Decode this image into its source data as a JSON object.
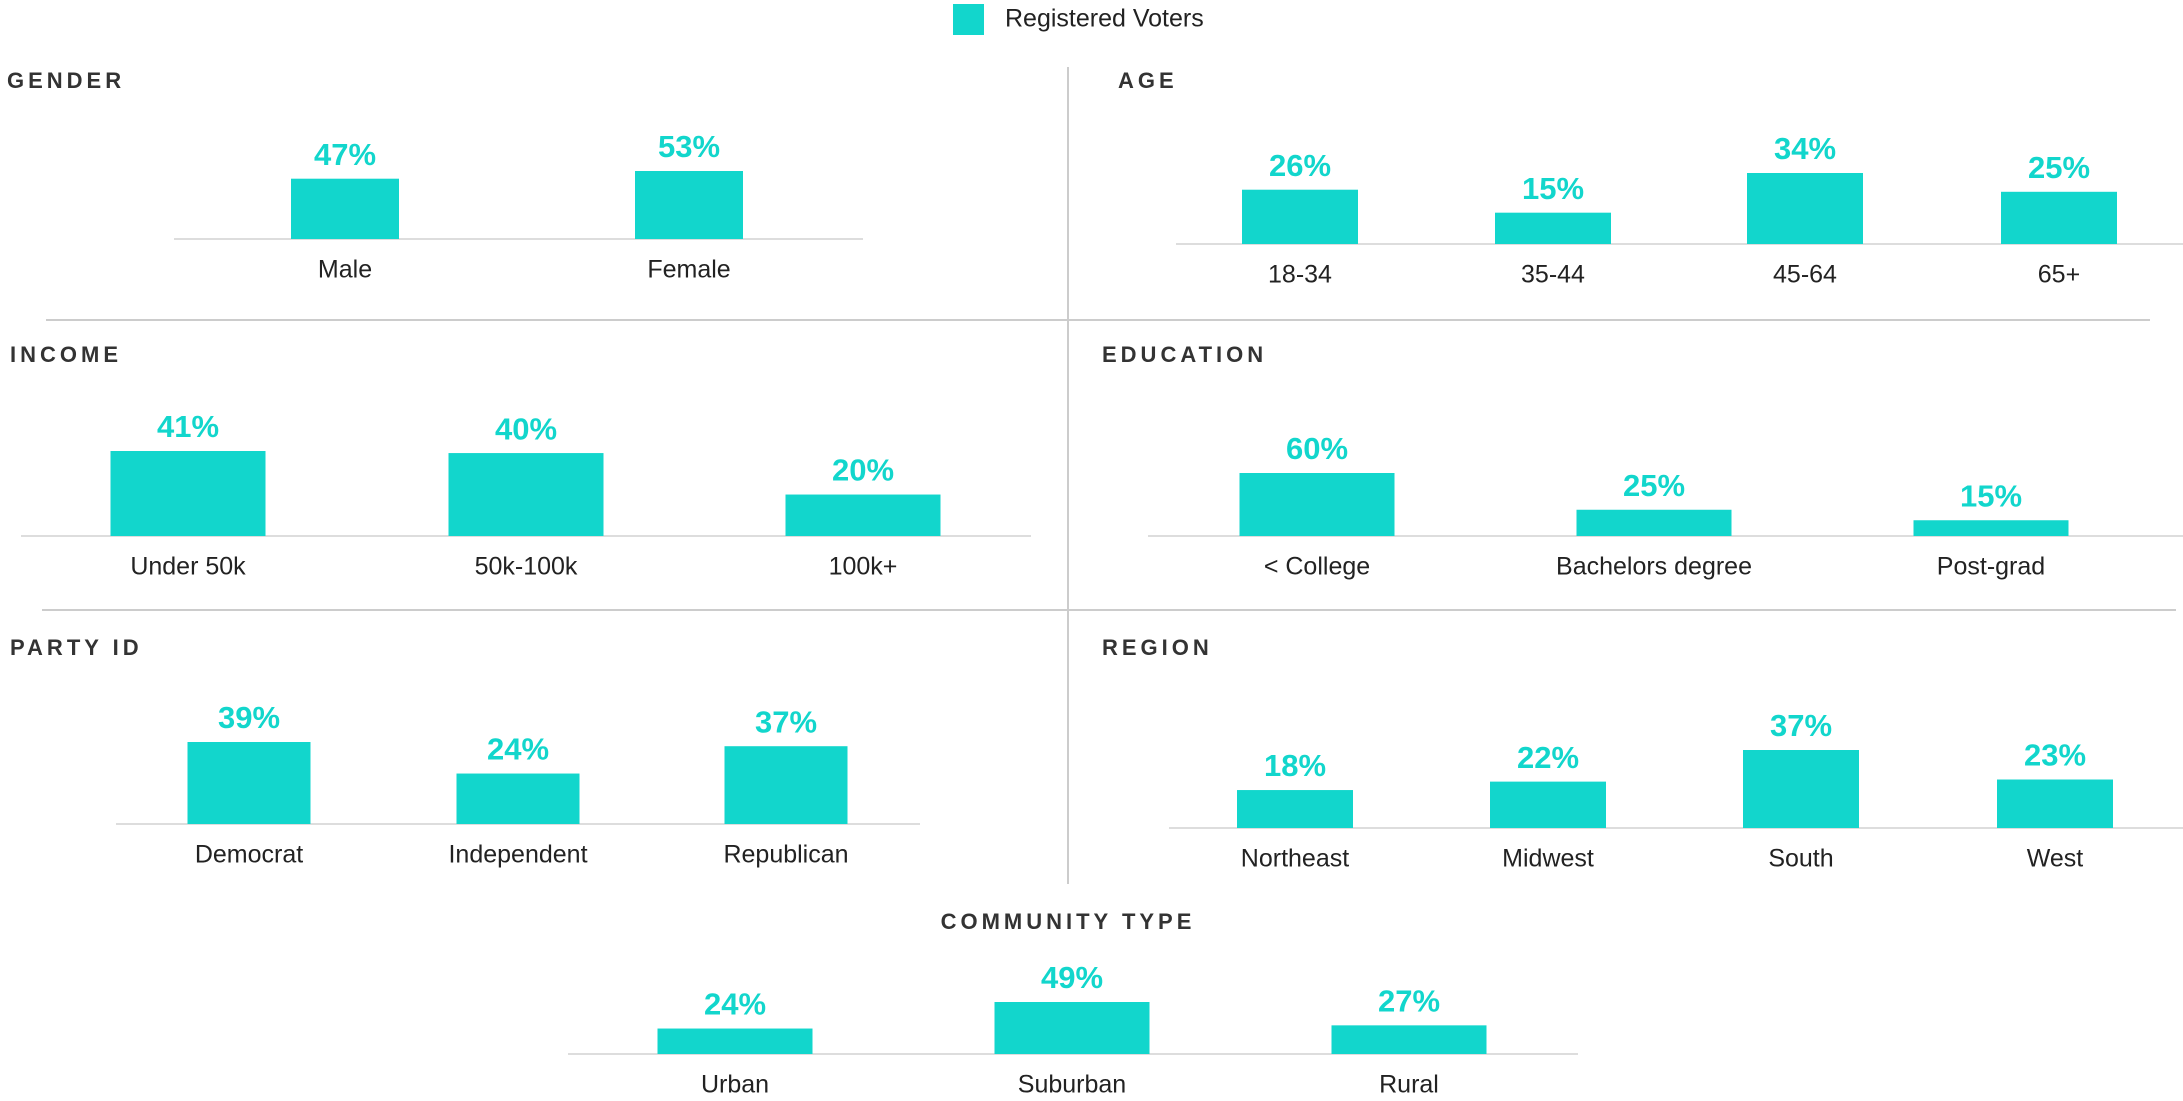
{
  "legend": {
    "name": "Registered Voters",
    "color": "#12d6cc"
  },
  "chart_data": [
    {
      "type": "bar",
      "title": "GENDER",
      "categories": [
        "Male",
        "Female"
      ],
      "values": [
        47,
        53
      ],
      "value_labels": [
        "47%",
        "53%"
      ],
      "color": "#12d6cc"
    },
    {
      "type": "bar",
      "title": "AGE",
      "categories": [
        "18-34",
        "35-44",
        "45-64",
        "65+"
      ],
      "values": [
        26,
        15,
        34,
        25
      ],
      "value_labels": [
        "26%",
        "15%",
        "34%",
        "25%"
      ],
      "color": "#12d6cc"
    },
    {
      "type": "bar",
      "title": "INCOME",
      "categories": [
        "Under 50k",
        "50k-100k",
        "100k+"
      ],
      "values": [
        41,
        40,
        20
      ],
      "value_labels": [
        "41%",
        "40%",
        "20%"
      ],
      "color": "#12d6cc"
    },
    {
      "type": "bar",
      "title": "EDUCATION",
      "categories": [
        "< College",
        "Bachelors degree",
        "Post-grad"
      ],
      "values": [
        60,
        25,
        15
      ],
      "value_labels": [
        "60%",
        "25%",
        "15%"
      ],
      "color": "#12d6cc"
    },
    {
      "type": "bar",
      "title": "PARTY ID",
      "categories": [
        "Democrat",
        "Independent",
        "Republican"
      ],
      "values": [
        39,
        24,
        37
      ],
      "value_labels": [
        "39%",
        "24%",
        "37%"
      ],
      "color": "#12d6cc"
    },
    {
      "type": "bar",
      "title": "REGION",
      "categories": [
        "Northeast",
        "Midwest",
        "South",
        "West"
      ],
      "values": [
        18,
        22,
        37,
        23
      ],
      "value_labels": [
        "18%",
        "22%",
        "37%",
        "23%"
      ],
      "color": "#12d6cc"
    },
    {
      "type": "bar",
      "title": "COMMUNITY TYPE",
      "categories": [
        "Urban",
        "Suburban",
        "Rural"
      ],
      "values": [
        24,
        49,
        27
      ],
      "value_labels": [
        "24%",
        "49%",
        "27%"
      ],
      "color": "#12d6cc"
    }
  ]
}
